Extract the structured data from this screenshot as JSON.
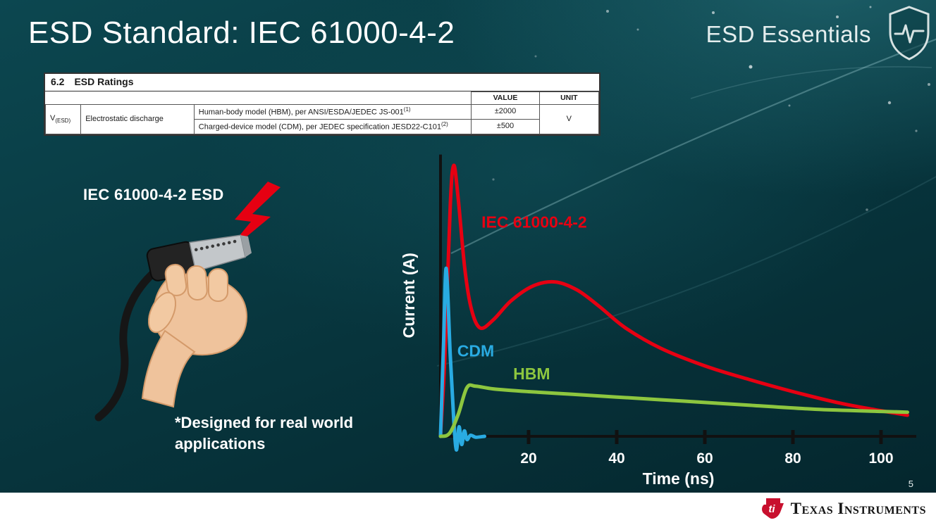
{
  "slide": {
    "title": "ESD Standard: IEC 61000-4-2",
    "brand": "ESD Essentials",
    "page_number": "5",
    "footer_logo_text": "Texas Instruments"
  },
  "ratings_table": {
    "section_num": "6.2",
    "section_title": "ESD Ratings",
    "value_header": "VALUE",
    "unit_header": "UNIT",
    "symbol_main": "V",
    "symbol_sub": "(ESD)",
    "row_label": "Electrostatic discharge",
    "rows": [
      {
        "desc": "Human-body model (HBM), per ANSI/ESDA/JEDEC JS-001",
        "sup": "(1)",
        "value": "±2000"
      },
      {
        "desc": "Charged-device model (CDM), per JEDEC specification JESD22-C101",
        "sup": "(2)",
        "value": "±500"
      }
    ],
    "unit": "V"
  },
  "left_panel": {
    "caption": "IEC 61000-4-2 ESD",
    "note": "*Designed for real world applications"
  },
  "chart_data": {
    "type": "line",
    "title": "",
    "xlabel": "Time (ns)",
    "ylabel": "Current (A)",
    "xlim": [
      0,
      108
    ],
    "ylim": [
      -0.08,
      1.05
    ],
    "xticks": [
      20,
      40,
      60,
      80,
      100
    ],
    "grid": false,
    "legend_position": "inline-labels",
    "axis_color": "#111111",
    "text_color": "#ffffff",
    "series": [
      {
        "name": "IEC 61000-4-2",
        "color": "#e60012",
        "label_pos": {
          "x": 9.3,
          "y": 0.77
        },
        "points": [
          [
            0,
            0
          ],
          [
            1,
            0.3
          ],
          [
            2.2,
            0.85
          ],
          [
            3,
            1.0
          ],
          [
            4,
            0.88
          ],
          [
            5.5,
            0.62
          ],
          [
            7,
            0.47
          ],
          [
            9,
            0.4
          ],
          [
            12,
            0.43
          ],
          [
            16,
            0.5
          ],
          [
            21,
            0.555
          ],
          [
            26,
            0.57
          ],
          [
            31,
            0.54
          ],
          [
            36,
            0.48
          ],
          [
            42,
            0.4
          ],
          [
            50,
            0.325
          ],
          [
            60,
            0.26
          ],
          [
            70,
            0.21
          ],
          [
            80,
            0.165
          ],
          [
            90,
            0.125
          ],
          [
            98,
            0.1
          ],
          [
            106,
            0.078
          ]
        ]
      },
      {
        "name": "CDM",
        "color": "#29abe2",
        "label_pos": {
          "x": 3.8,
          "y": 0.295
        },
        "points": [
          [
            0,
            0
          ],
          [
            0.7,
            0.35
          ],
          [
            1.3,
            0.62
          ],
          [
            2.2,
            0.3
          ],
          [
            3.0,
            0.06
          ],
          [
            3.6,
            -0.05
          ],
          [
            4.2,
            0.035
          ],
          [
            4.8,
            -0.03
          ],
          [
            5.4,
            0.02
          ],
          [
            6.0,
            -0.012
          ],
          [
            6.8,
            0.004
          ],
          [
            8,
            -0.003
          ],
          [
            10,
            0
          ]
        ]
      },
      {
        "name": "HBM",
        "color": "#8dc63f",
        "label_pos": {
          "x": 16.5,
          "y": 0.21
        },
        "points": [
          [
            0,
            0
          ],
          [
            2,
            0.01
          ],
          [
            4,
            0.08
          ],
          [
            6,
            0.18
          ],
          [
            8,
            0.185
          ],
          [
            12,
            0.175
          ],
          [
            20,
            0.165
          ],
          [
            30,
            0.155
          ],
          [
            40,
            0.145
          ],
          [
            55,
            0.13
          ],
          [
            70,
            0.115
          ],
          [
            85,
            0.1
          ],
          [
            100,
            0.092
          ],
          [
            106,
            0.089
          ]
        ]
      }
    ]
  }
}
